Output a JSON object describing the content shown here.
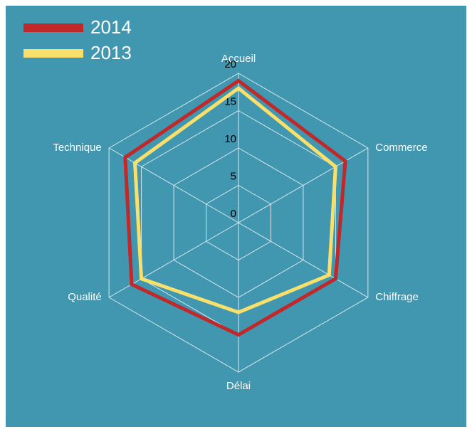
{
  "chart_data": {
    "type": "radar",
    "categories": [
      "Accueil",
      "Commerce",
      "Chiffrage",
      "Délai",
      "Qualité",
      "Technique"
    ],
    "series": [
      {
        "name": "2014",
        "color": "#c0282a",
        "values": [
          19,
          16.5,
          15,
          15,
          16.5,
          17.5
        ]
      },
      {
        "name": "2013",
        "color": "#f8e06a",
        "values": [
          18,
          15,
          14,
          12,
          15,
          16
        ]
      }
    ],
    "ylim": [
      0,
      20
    ],
    "yticks": [
      0,
      5,
      10,
      15,
      20
    ],
    "grid": true,
    "legend": "top-left",
    "background": "#4196b0"
  }
}
